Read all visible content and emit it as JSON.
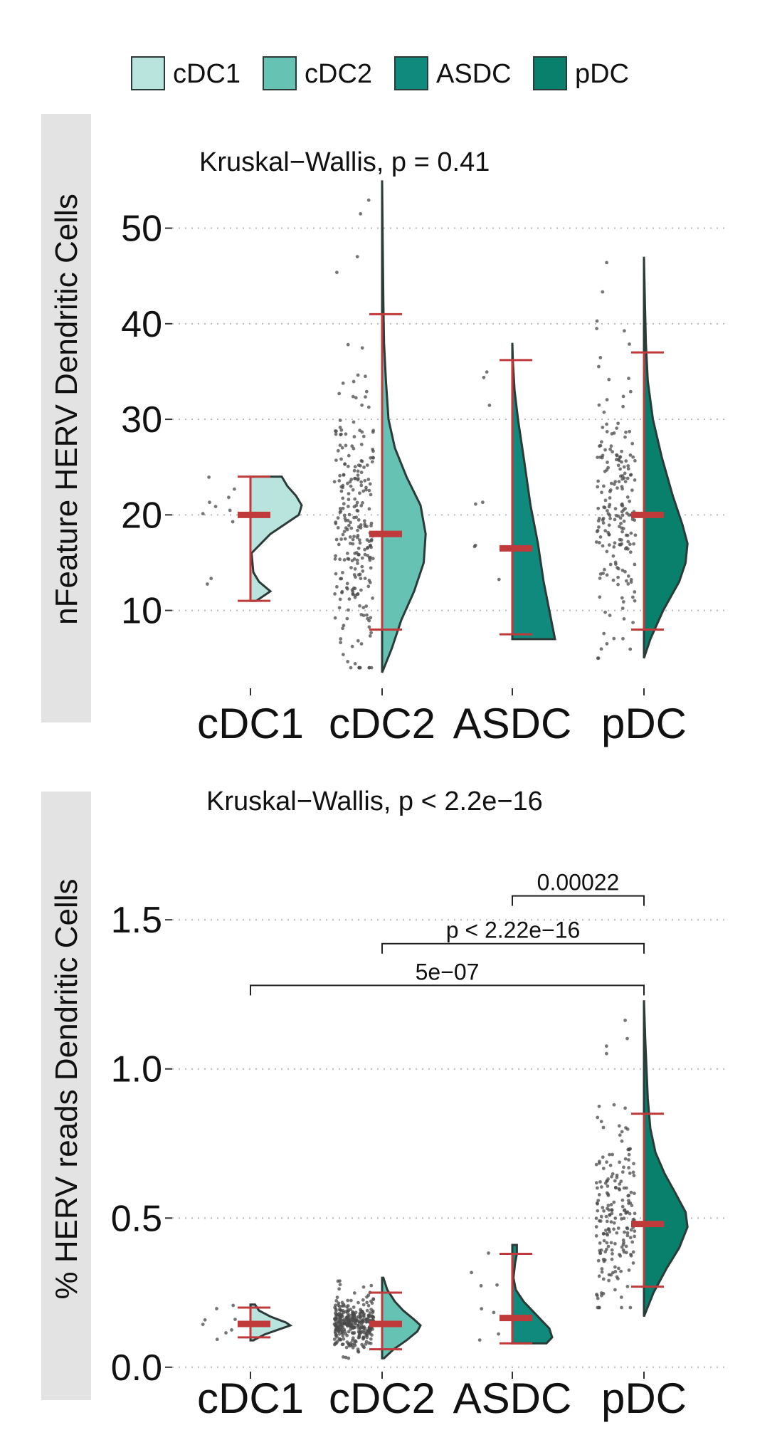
{
  "legend": {
    "items": [
      {
        "label": "cDC1",
        "color": "#b9e3dd"
      },
      {
        "label": "cDC2",
        "color": "#66c2b2"
      },
      {
        "label": "ASDC",
        "color": "#0f8a7c"
      },
      {
        "label": "pDC",
        "color": "#08806c"
      }
    ]
  },
  "chart_data": [
    {
      "type": "violin",
      "panel": "top",
      "ylabel": "nFeature HERV Dendritic Cells",
      "stat_test": "Kruskal−Wallis, p = 0.41",
      "categories": [
        "cDC1",
        "cDC2",
        "ASDC",
        "pDC"
      ],
      "ylim": [
        2,
        56
      ],
      "yticks": [
        10,
        20,
        30,
        40,
        50
      ],
      "ytick_labels": [
        "10",
        "20",
        "30",
        "40",
        "50"
      ],
      "grid": true,
      "series": [
        {
          "category": "cDC1",
          "min": 11,
          "max": 24,
          "mean": 20,
          "ci": [
            11,
            24
          ],
          "density": [
            [
              11,
              0.1
            ],
            [
              12,
              0.35
            ],
            [
              13,
              0.15
            ],
            [
              14,
              0.05
            ],
            [
              16,
              0.02
            ],
            [
              18,
              0.35
            ],
            [
              20,
              0.85
            ],
            [
              21,
              0.9
            ],
            [
              22,
              0.8
            ],
            [
              23,
              0.65
            ],
            [
              24,
              0.55
            ]
          ],
          "point_range": [
            10,
            26
          ],
          "n_points": 10
        },
        {
          "category": "cDC2",
          "min": 3.5,
          "max": 55,
          "mean": 18,
          "ci": [
            8,
            41
          ],
          "density": [
            [
              3.5,
              0
            ],
            [
              6,
              0.15
            ],
            [
              9,
              0.3
            ],
            [
              12,
              0.5
            ],
            [
              15,
              0.65
            ],
            [
              18,
              0.68
            ],
            [
              21,
              0.6
            ],
            [
              24,
              0.38
            ],
            [
              27,
              0.2
            ],
            [
              30,
              0.1
            ],
            [
              34,
              0.06
            ],
            [
              38,
              0.03
            ],
            [
              42,
              0.02
            ],
            [
              48,
              0.01
            ],
            [
              55,
              0
            ]
          ],
          "point_range": [
            4,
            55
          ],
          "n_points": 260
        },
        {
          "category": "ASDC",
          "min": 7,
          "max": 38,
          "mean": 16.5,
          "ci": [
            7.5,
            36.2
          ],
          "density": [
            [
              7,
              0.75
            ],
            [
              10,
              0.65
            ],
            [
              13,
              0.55
            ],
            [
              17,
              0.45
            ],
            [
              21,
              0.32
            ],
            [
              26,
              0.2
            ],
            [
              30,
              0.1
            ],
            [
              33,
              0.04
            ],
            [
              36,
              0.01
            ],
            [
              38,
              0.0
            ]
          ],
          "point_range": [
            8,
            38
          ],
          "n_points": 8
        },
        {
          "category": "pDC",
          "min": 5,
          "max": 47,
          "mean": 20,
          "ci": [
            8,
            37
          ],
          "density": [
            [
              5,
              0
            ],
            [
              7,
              0.1
            ],
            [
              10,
              0.3
            ],
            [
              13,
              0.55
            ],
            [
              15,
              0.65
            ],
            [
              17,
              0.68
            ],
            [
              19,
              0.6
            ],
            [
              22,
              0.45
            ],
            [
              26,
              0.28
            ],
            [
              30,
              0.14
            ],
            [
              34,
              0.06
            ],
            [
              38,
              0.03
            ],
            [
              42,
              0.015
            ],
            [
              47,
              0
            ]
          ],
          "point_range": [
            5,
            47
          ],
          "n_points": 200
        }
      ],
      "comparisons": []
    },
    {
      "type": "violin",
      "panel": "bottom",
      "ylabel": "% HERV reads Dendritic Cells",
      "stat_test": "Kruskal−Wallis, p < 2.2e−16",
      "categories": [
        "cDC1",
        "cDC2",
        "ASDC",
        "pDC"
      ],
      "ylim": [
        -0.01,
        1.72
      ],
      "yticks": [
        0.0,
        0.5,
        1.0,
        1.5
      ],
      "ytick_labels": [
        "0.0",
        "0.5",
        "1.0",
        "1.5"
      ],
      "grid": true,
      "series": [
        {
          "category": "cDC1",
          "min": 0.09,
          "max": 0.21,
          "mean": 0.145,
          "ci": [
            0.1,
            0.2
          ],
          "density": [
            [
              0.09,
              0.05
            ],
            [
              0.11,
              0.25
            ],
            [
              0.13,
              0.55
            ],
            [
              0.14,
              0.7
            ],
            [
              0.15,
              0.62
            ],
            [
              0.17,
              0.35
            ],
            [
              0.19,
              0.15
            ],
            [
              0.21,
              0.08
            ]
          ],
          "point_range": [
            0.09,
            0.21
          ],
          "n_points": 8
        },
        {
          "category": "cDC2",
          "min": 0.03,
          "max": 0.3,
          "mean": 0.145,
          "ci": [
            0.06,
            0.25
          ],
          "density": [
            [
              0.03,
              0.03
            ],
            [
              0.06,
              0.18
            ],
            [
              0.09,
              0.38
            ],
            [
              0.12,
              0.55
            ],
            [
              0.14,
              0.6
            ],
            [
              0.16,
              0.5
            ],
            [
              0.19,
              0.33
            ],
            [
              0.22,
              0.2
            ],
            [
              0.26,
              0.08
            ],
            [
              0.3,
              0.02
            ]
          ],
          "point_range": [
            0.03,
            0.3
          ],
          "n_points": 320
        },
        {
          "category": "ASDC",
          "min": 0.08,
          "max": 0.41,
          "mean": 0.165,
          "ci": [
            0.08,
            0.38
          ],
          "density": [
            [
              0.08,
              0.6
            ],
            [
              0.1,
              0.7
            ],
            [
              0.13,
              0.65
            ],
            [
              0.16,
              0.5
            ],
            [
              0.19,
              0.35
            ],
            [
              0.22,
              0.2
            ],
            [
              0.26,
              0.06
            ],
            [
              0.3,
              0.02
            ],
            [
              0.35,
              0.05
            ],
            [
              0.38,
              0.08
            ],
            [
              0.41,
              0.08
            ]
          ],
          "point_range": [
            0.08,
            0.4
          ],
          "n_points": 8
        },
        {
          "category": "pDC",
          "min": 0.17,
          "max": 1.23,
          "mean": 0.48,
          "ci": [
            0.27,
            0.85
          ],
          "density": [
            [
              0.17,
              0.0
            ],
            [
              0.25,
              0.15
            ],
            [
              0.33,
              0.35
            ],
            [
              0.4,
              0.55
            ],
            [
              0.47,
              0.68
            ],
            [
              0.52,
              0.65
            ],
            [
              0.58,
              0.5
            ],
            [
              0.65,
              0.32
            ],
            [
              0.72,
              0.18
            ],
            [
              0.8,
              0.1
            ],
            [
              0.9,
              0.06
            ],
            [
              1.0,
              0.04
            ],
            [
              1.1,
              0.02
            ],
            [
              1.23,
              0.0
            ]
          ],
          "point_range": [
            0.2,
            1.23
          ],
          "n_points": 200
        }
      ],
      "comparisons": [
        {
          "group1": "ASDC",
          "group2": "pDC",
          "label": "0.00022",
          "y": 1.58
        },
        {
          "group1": "cDC2",
          "group2": "pDC",
          "label": "p < 2.22e−16",
          "y": 1.42
        },
        {
          "group1": "cDC1",
          "group2": "pDC",
          "label": "5e−07",
          "y": 1.28
        }
      ]
    }
  ]
}
